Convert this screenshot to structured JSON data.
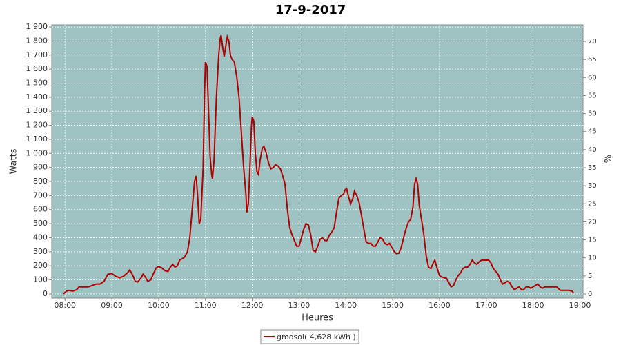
{
  "chart_data": {
    "type": "line",
    "title": "17-9-2017",
    "x_label": "Heures",
    "y_label": "Watts",
    "y2_label": "%",
    "x": [
      "07:58",
      "08:02",
      "08:05",
      "08:10",
      "08:15",
      "08:18",
      "08:25",
      "08:30",
      "08:35",
      "08:40",
      "08:45",
      "08:50",
      "08:55",
      "09:00",
      "09:05",
      "09:10",
      "09:15",
      "09:20",
      "09:23",
      "09:27",
      "09:30",
      "09:33",
      "09:37",
      "09:40",
      "09:43",
      "09:46",
      "09:50",
      "09:53",
      "09:57",
      "10:00",
      "10:04",
      "10:08",
      "10:12",
      "10:15",
      "10:18",
      "10:21",
      "10:24",
      "10:27",
      "10:30",
      "10:33",
      "10:37",
      "10:40",
      "10:43",
      "10:46",
      "10:48",
      "10:50",
      "10:52",
      "10:54",
      "10:57",
      "10:59",
      "11:00",
      "11:02",
      "11:04",
      "11:06",
      "11:08",
      "11:09",
      "11:11",
      "11:14",
      "11:17",
      "11:19",
      "11:20",
      "11:22",
      "11:24",
      "11:26",
      "11:28",
      "11:30",
      "11:32",
      "11:34",
      "11:37",
      "11:40",
      "11:43",
      "11:46",
      "11:49",
      "11:52",
      "11:53",
      "11:55",
      "11:57",
      "11:59",
      "12:00",
      "12:02",
      "12:04",
      "12:06",
      "12:08",
      "12:10",
      "12:13",
      "12:15",
      "12:18",
      "12:21",
      "12:24",
      "12:27",
      "12:30",
      "12:33",
      "12:36",
      "12:39",
      "12:42",
      "12:45",
      "12:48",
      "12:51",
      "12:54",
      "12:57",
      "13:00",
      "13:03",
      "13:06",
      "13:09",
      "13:12",
      "13:15",
      "13:18",
      "13:21",
      "13:24",
      "13:27",
      "13:30",
      "13:33",
      "13:36",
      "13:39",
      "13:42",
      "13:45",
      "13:48",
      "13:51",
      "13:54",
      "13:57",
      "13:59",
      "14:01",
      "14:03",
      "14:06",
      "14:09",
      "14:11",
      "14:14",
      "14:17",
      "14:20",
      "14:23",
      "14:26",
      "14:29",
      "14:32",
      "14:35",
      "14:38",
      "14:41",
      "14:44",
      "14:47",
      "14:50",
      "14:53",
      "14:56",
      "14:59",
      "15:02",
      "15:05",
      "15:08",
      "15:11",
      "15:14",
      "15:17",
      "15:20",
      "15:23",
      "15:26",
      "15:28",
      "15:30",
      "15:32",
      "15:34",
      "15:37",
      "15:40",
      "15:43",
      "15:46",
      "15:49",
      "15:52",
      "15:54",
      "15:57",
      "16:00",
      "16:03",
      "16:06",
      "16:09",
      "16:12",
      "16:15",
      "16:18",
      "16:21",
      "16:24",
      "16:27",
      "16:30",
      "16:33",
      "16:36",
      "16:39",
      "16:42",
      "16:45",
      "16:48",
      "16:51",
      "16:54",
      "16:57",
      "17:00",
      "17:03",
      "17:06",
      "17:09",
      "17:12",
      "17:15",
      "17:18",
      "17:21",
      "17:24",
      "17:27",
      "17:30",
      "17:33",
      "17:36",
      "17:39",
      "17:42",
      "17:45",
      "17:48",
      "17:51",
      "17:54",
      "17:57",
      "18:00",
      "18:03",
      "18:06",
      "18:09",
      "18:12",
      "18:15",
      "18:30",
      "18:35",
      "18:45",
      "18:50",
      "18:52"
    ],
    "series": [
      {
        "name": "gmosol( 4,628 kWh )",
        "color": "#b00000",
        "values": [
          0,
          20,
          25,
          20,
          30,
          50,
          50,
          50,
          60,
          70,
          70,
          90,
          140,
          145,
          125,
          115,
          125,
          150,
          170,
          130,
          90,
          85,
          110,
          140,
          120,
          90,
          100,
          140,
          185,
          195,
          185,
          165,
          160,
          190,
          210,
          190,
          200,
          240,
          250,
          260,
          300,
          400,
          600,
          800,
          840,
          700,
          500,
          530,
          900,
          1450,
          1650,
          1620,
          1300,
          980,
          850,
          820,
          950,
          1400,
          1700,
          1820,
          1840,
          1760,
          1690,
          1760,
          1830,
          1800,
          1700,
          1670,
          1650,
          1550,
          1400,
          1150,
          900,
          700,
          580,
          640,
          900,
          1200,
          1260,
          1230,
          1000,
          870,
          850,
          950,
          1040,
          1050,
          1000,
          930,
          890,
          900,
          920,
          910,
          890,
          840,
          780,
          600,
          470,
          420,
          380,
          340,
          340,
          400,
          460,
          500,
          490,
          420,
          310,
          300,
          340,
          390,
          400,
          380,
          380,
          420,
          440,
          470,
          580,
          680,
          700,
          710,
          740,
          750,
          700,
          640,
          680,
          730,
          700,
          650,
          560,
          460,
          370,
          360,
          360,
          340,
          340,
          370,
          400,
          390,
          360,
          350,
          360,
          330,
          300,
          285,
          290,
          330,
          400,
          460,
          510,
          530,
          620,
          780,
          820,
          780,
          630,
          530,
          420,
          270,
          190,
          180,
          220,
          240,
          180,
          130,
          120,
          115,
          110,
          80,
          50,
          60,
          100,
          130,
          150,
          180,
          190,
          190,
          210,
          240,
          220,
          210,
          230,
          240,
          240,
          240,
          240,
          220,
          180,
          160,
          140,
          100,
          70,
          80,
          90,
          80,
          50,
          30,
          40,
          50,
          30,
          30,
          50,
          50,
          40,
          50,
          60,
          70,
          50,
          40,
          50,
          50,
          25,
          25,
          20,
          5
        ]
      }
    ],
    "xlim": [
      "07:43",
      "19:04"
    ],
    "xticks": [
      "08:00",
      "09:00",
      "10:00",
      "11:00",
      "12:00",
      "13:00",
      "14:00",
      "15:00",
      "16:00",
      "17:00",
      "18:00",
      "19:00"
    ],
    "ylim": [
      -30,
      1915
    ],
    "yticks": [
      0,
      100,
      200,
      300,
      400,
      500,
      600,
      700,
      800,
      900,
      {
        "value": 1000,
        "label": "1 000"
      },
      {
        "value": 1100,
        "label": "1 100"
      },
      {
        "value": 1200,
        "label": "1 200"
      },
      {
        "value": 1300,
        "label": "1 300"
      },
      {
        "value": 1400,
        "label": "1 400"
      },
      {
        "value": 1500,
        "label": "1 500"
      },
      {
        "value": 1600,
        "label": "1 600"
      },
      {
        "value": 1700,
        "label": "1 700"
      },
      {
        "value": 1800,
        "label": "1 800"
      },
      {
        "value": 1900,
        "label": "1 900"
      }
    ],
    "y2lim": [
      -1.15,
      74.6
    ],
    "y2ticks": [
      0,
      5,
      10,
      15,
      20,
      25,
      30,
      35,
      40,
      45,
      50,
      55,
      60,
      65,
      70
    ],
    "grid": true,
    "legend": "bottom",
    "plot_background": "#9fc3c3"
  }
}
